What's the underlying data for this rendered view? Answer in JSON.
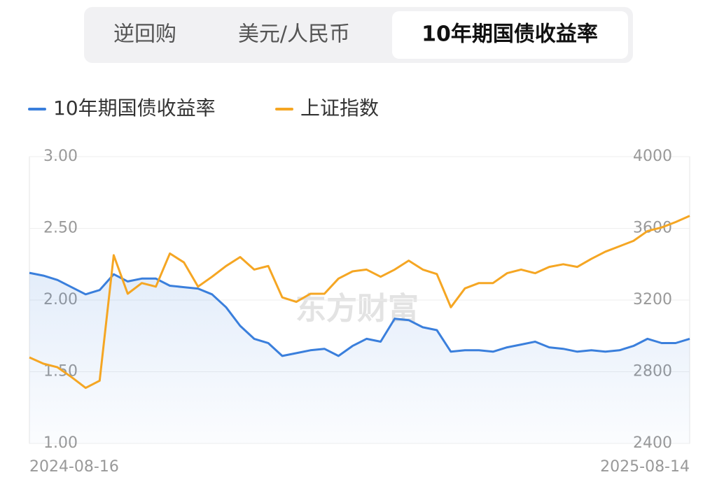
{
  "tabs": [
    "逆回购",
    "美元/人民币",
    "10年期国债收益率"
  ],
  "active_tab": 2,
  "watermark": "东方财富",
  "chart_data": {
    "type": "line",
    "categories": [
      "2024-08-16",
      null,
      null,
      null,
      null,
      null,
      null,
      null,
      null,
      null,
      null,
      null,
      null,
      null,
      null,
      null,
      null,
      null,
      null,
      null,
      null,
      null,
      null,
      null,
      null,
      null,
      null,
      null,
      null,
      null,
      null,
      null,
      null,
      null,
      null,
      null,
      null,
      null,
      null,
      null,
      null,
      null,
      null,
      null,
      null,
      null,
      null,
      "2025-08-14"
    ],
    "series": [
      {
        "name": "10年期国债收益率",
        "color": "#3a7fdc",
        "values": [
          2.19,
          2.17,
          2.14,
          2.09,
          2.04,
          2.07,
          2.18,
          2.13,
          2.15,
          2.15,
          2.1,
          2.09,
          2.08,
          2.04,
          1.95,
          1.82,
          1.73,
          1.7,
          1.61,
          1.63,
          1.65,
          1.66,
          1.61,
          1.68,
          1.73,
          1.71,
          1.87,
          1.86,
          1.81,
          1.79,
          1.64,
          1.65,
          1.65,
          1.64,
          1.67,
          1.69,
          1.71,
          1.67,
          1.66,
          1.64,
          1.65,
          1.64,
          1.65,
          1.68,
          1.73,
          1.7,
          1.7,
          1.73
        ]
      },
      {
        "name": "上证指数",
        "color": "#f5a623",
        "axis": "y2",
        "values": [
          2880,
          2845,
          2825,
          2770,
          2710,
          2750,
          3450,
          3235,
          3295,
          3275,
          3460,
          3410,
          3275,
          3330,
          3390,
          3440,
          3370,
          3390,
          3215,
          3190,
          3235,
          3235,
          3320,
          3360,
          3370,
          3330,
          3370,
          3420,
          3370,
          3345,
          3160,
          3265,
          3295,
          3295,
          3350,
          3370,
          3350,
          3385,
          3400,
          3385,
          3430,
          3470,
          3500,
          3530,
          3585,
          3605,
          3635,
          3670
        ]
      }
    ],
    "ylim": [
      1,
      3
    ],
    "yticks": [
      {
        "value": 1,
        "label": "1.00"
      },
      {
        "value": 1.5,
        "label": "1.50"
      },
      {
        "value": 2,
        "label": "2.00"
      },
      {
        "value": 2.5,
        "label": "2.50"
      },
      {
        "value": 3,
        "label": "3.00"
      }
    ],
    "y2lim": [
      2400,
      4000
    ],
    "y2ticks": [
      2400,
      2800,
      3200,
      3600,
      4000
    ],
    "grid": true,
    "legend": "top"
  }
}
